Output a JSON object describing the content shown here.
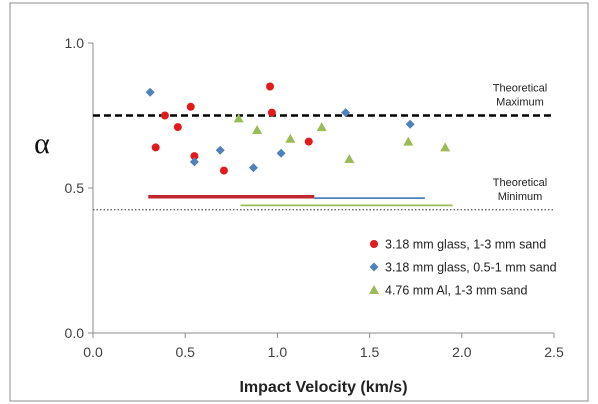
{
  "chart_data": {
    "type": "scatter",
    "title": "",
    "xlabel": "Impact Velocity (km/s)",
    "ylabel": "α",
    "xlim": [
      0,
      2.5
    ],
    "ylim": [
      0,
      1.0
    ],
    "x_ticks": [
      "0.0",
      "0.5",
      "1.0",
      "1.5",
      "2.0",
      "2.5"
    ],
    "y_ticks": [
      "0.0",
      "0.5",
      "1.0"
    ],
    "grid": false,
    "legend_position": "right-middle",
    "series": [
      {
        "name": "3.18 mm glass, 1-3 mm sand",
        "marker": "circle",
        "color": "#e31a1c",
        "x": [
          0.34,
          0.39,
          0.46,
          0.53,
          0.55,
          0.71,
          0.96,
          0.97,
          1.17
        ],
        "y": [
          0.64,
          0.75,
          0.71,
          0.78,
          0.61,
          0.56,
          0.85,
          0.76,
          0.66
        ]
      },
      {
        "name": "3.18 mm glass, 0.5-1 mm sand",
        "marker": "diamond",
        "color": "#4f81bd",
        "x": [
          0.31,
          0.55,
          0.69,
          0.87,
          1.02,
          1.37,
          1.72
        ],
        "y": [
          0.83,
          0.59,
          0.63,
          0.57,
          0.62,
          0.76,
          0.72
        ]
      },
      {
        "name": "4.76 mm Al, 1-3 mm sand",
        "marker": "triangle",
        "color": "#9bbb59",
        "x": [
          0.79,
          0.89,
          1.07,
          1.24,
          1.39,
          1.71,
          1.91
        ],
        "y": [
          0.74,
          0.7,
          0.67,
          0.71,
          0.6,
          0.66,
          0.64
        ]
      }
    ],
    "reference_lines": [
      {
        "label": "Theoretical Maximum",
        "label_lines": [
          "Theoretical",
          "Maximum"
        ],
        "y": 0.75,
        "style": "dashed",
        "color": "#000000"
      },
      {
        "label": "Theoretical Minimum",
        "label_lines": [
          "Theoretical",
          "Minimum"
        ],
        "y": 0.425,
        "style": "dotted",
        "color": "#555555"
      }
    ],
    "range_bars": [
      {
        "series": "3.18 mm glass, 1-3 mm sand",
        "x_start": 0.3,
        "x_end": 1.2,
        "y": 0.47,
        "color": "#c0262d"
      },
      {
        "series": "3.18 mm glass, 0.5-1 mm sand",
        "x_start": 1.2,
        "x_end": 1.8,
        "y": 0.465,
        "color": "#4f81bd"
      },
      {
        "series": "4.76 mm Al, 1-3 mm sand",
        "x_start": 0.8,
        "x_end": 1.95,
        "y": 0.44,
        "color": "#9bbb59"
      }
    ]
  }
}
